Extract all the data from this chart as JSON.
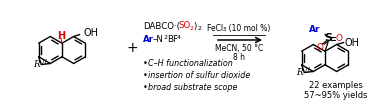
{
  "bg_color": "#ffffff",
  "black": "#000000",
  "red": "#dd0000",
  "blue": "#0000cc",
  "bullet_items": [
    "C–H functionalization",
    "insertion of sulfur dioxide",
    "broad substrate scope"
  ],
  "fig_width": 3.78,
  "fig_height": 1.08,
  "dpi": 100
}
